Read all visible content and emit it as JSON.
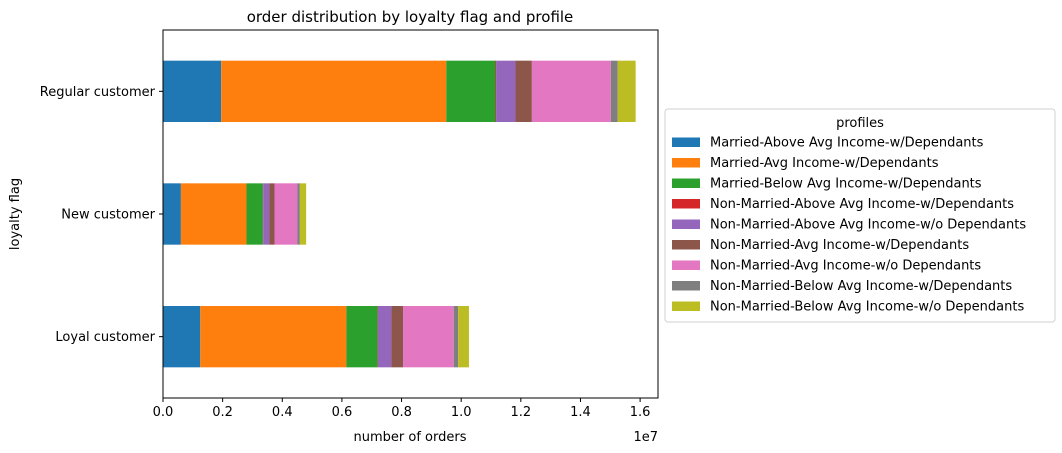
{
  "chart_data": {
    "type": "bar",
    "orientation": "horizontal",
    "stacked": true,
    "title": "order distribution by loyalty flag and profile",
    "xlabel": "number of orders",
    "ylabel": "loyalty flag",
    "x_scale_label": "1e7",
    "xlim": [
      0,
      16600000
    ],
    "x_ticks": [
      0,
      2000000,
      4000000,
      6000000,
      8000000,
      10000000,
      12000000,
      14000000,
      16000000
    ],
    "x_tick_labels": [
      "0.0",
      "0.2",
      "0.4",
      "0.6",
      "0.8",
      "1.0",
      "1.2",
      "1.4",
      "1.6"
    ],
    "categories": [
      "Loyal customer",
      "New customer",
      "Regular customer"
    ],
    "legend_title": "profiles",
    "legend_position": "outside right",
    "grid": false,
    "series": [
      {
        "name": "Married-Above Avg Income-w/Dependants",
        "color": "#1f77b4",
        "values": [
          1250000,
          600000,
          1950000
        ]
      },
      {
        "name": "Married-Avg Income-w/Dependants",
        "color": "#ff7f0e",
        "values": [
          4900000,
          2200000,
          7550000
        ]
      },
      {
        "name": "Married-Below Avg Income-w/Dependants",
        "color": "#2ca02c",
        "values": [
          1050000,
          550000,
          1650000
        ]
      },
      {
        "name": "Non-Married-Above Avg Income-w/Dependants",
        "color": "#d62728",
        "values": [
          10000,
          10000,
          20000
        ]
      },
      {
        "name": "Non-Married-Above Avg Income-w/o Dependants",
        "color": "#9467bd",
        "values": [
          450000,
          200000,
          650000
        ]
      },
      {
        "name": "Non-Married-Avg Income-w/Dependants",
        "color": "#8c564b",
        "values": [
          390000,
          180000,
          550000
        ]
      },
      {
        "name": "Non-Married-Avg Income-w/o Dependants",
        "color": "#e377c2",
        "values": [
          1700000,
          770000,
          2650000
        ]
      },
      {
        "name": "Non-Married-Below Avg Income-w/Dependants",
        "color": "#7f7f7f",
        "values": [
          150000,
          80000,
          230000
        ]
      },
      {
        "name": "Non-Married-Below Avg Income-w/o Dependants",
        "color": "#bcbd22",
        "values": [
          360000,
          210000,
          600000
        ]
      }
    ]
  }
}
